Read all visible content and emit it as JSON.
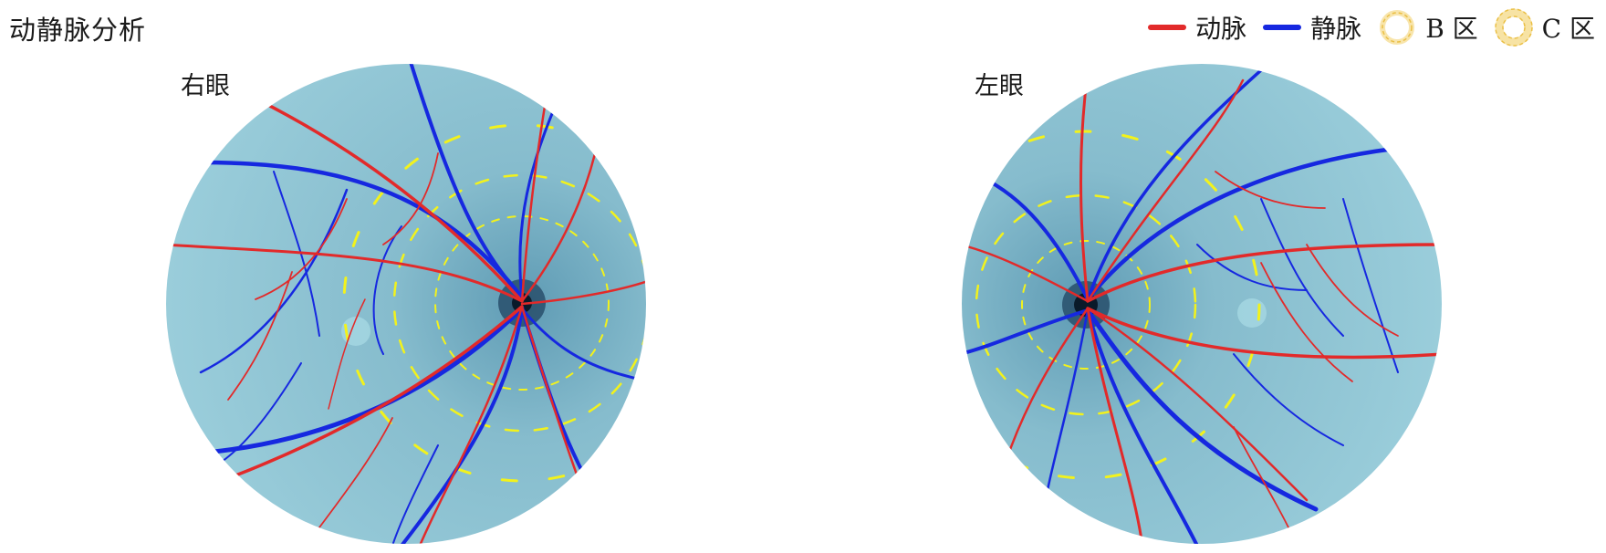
{
  "title": "动静脉分析",
  "colors": {
    "artery": "#e22a2a",
    "vein": "#1628e0",
    "zone_ring": "#f2d068",
    "fundus_bg": "#8fc3d3",
    "fundus_dash": "#f2f21c"
  },
  "legend": [
    {
      "key": "artery",
      "label": "动脉"
    },
    {
      "key": "vein",
      "label": "静脉"
    },
    {
      "key": "zone_b",
      "label": "B 区"
    },
    {
      "key": "zone_c",
      "label": "C 区"
    }
  ],
  "eyes": {
    "right": {
      "label": "右眼"
    },
    "left": {
      "label": "左眼"
    }
  }
}
